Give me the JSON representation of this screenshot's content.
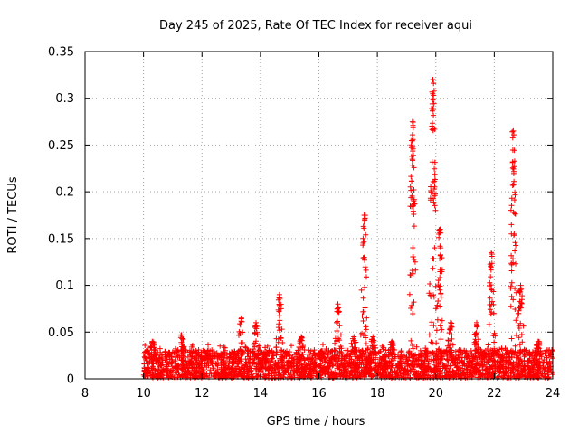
{
  "chart_data": {
    "type": "scatter",
    "title": "Day 245 of 2025, Rate Of TEC Index for receiver aqui",
    "xlabel": "GPS time / hours",
    "ylabel": "ROTI / TECUs",
    "xlim": [
      8,
      24
    ],
    "ylim": [
      0,
      0.35
    ],
    "x_ticks": [
      8,
      10,
      12,
      14,
      16,
      18,
      20,
      22,
      24
    ],
    "x_tick_labels": [
      "8",
      "10",
      "12",
      "14",
      "16",
      "18",
      "20",
      "22",
      "24"
    ],
    "y_ticks": [
      0,
      0.05,
      0.1,
      0.15,
      0.2,
      0.25,
      0.3,
      0.35
    ],
    "y_tick_labels": [
      "0",
      "0.05",
      "0.1",
      "0.15",
      "0.2",
      "0.25",
      "0.3",
      "0.35"
    ],
    "grid": true,
    "marker": "+",
    "color": "#ff0000",
    "series": [
      {
        "name": "ROTI",
        "baseline": {
          "x_start": 10.0,
          "x_end": 24.0,
          "y_min": 0.0,
          "y_max": 0.03
        },
        "peaks": [
          {
            "x": 10.3,
            "y": 0.04
          },
          {
            "x": 11.3,
            "y": 0.047
          },
          {
            "x": 12.2,
            "y": 0.03
          },
          {
            "x": 13.35,
            "y": 0.065
          },
          {
            "x": 13.85,
            "y": 0.06
          },
          {
            "x": 14.65,
            "y": 0.09
          },
          {
            "x": 15.4,
            "y": 0.045
          },
          {
            "x": 16.1,
            "y": 0.03
          },
          {
            "x": 16.65,
            "y": 0.08
          },
          {
            "x": 17.2,
            "y": 0.045
          },
          {
            "x": 17.55,
            "y": 0.175
          },
          {
            "x": 17.85,
            "y": 0.045
          },
          {
            "x": 18.5,
            "y": 0.04
          },
          {
            "x": 19.2,
            "y": 0.275
          },
          {
            "x": 19.9,
            "y": 0.32
          },
          {
            "x": 20.15,
            "y": 0.16
          },
          {
            "x": 20.5,
            "y": 0.06
          },
          {
            "x": 21.4,
            "y": 0.06
          },
          {
            "x": 21.9,
            "y": 0.135
          },
          {
            "x": 22.65,
            "y": 0.265
          },
          {
            "x": 22.9,
            "y": 0.1
          },
          {
            "x": 23.5,
            "y": 0.04
          }
        ]
      }
    ]
  }
}
